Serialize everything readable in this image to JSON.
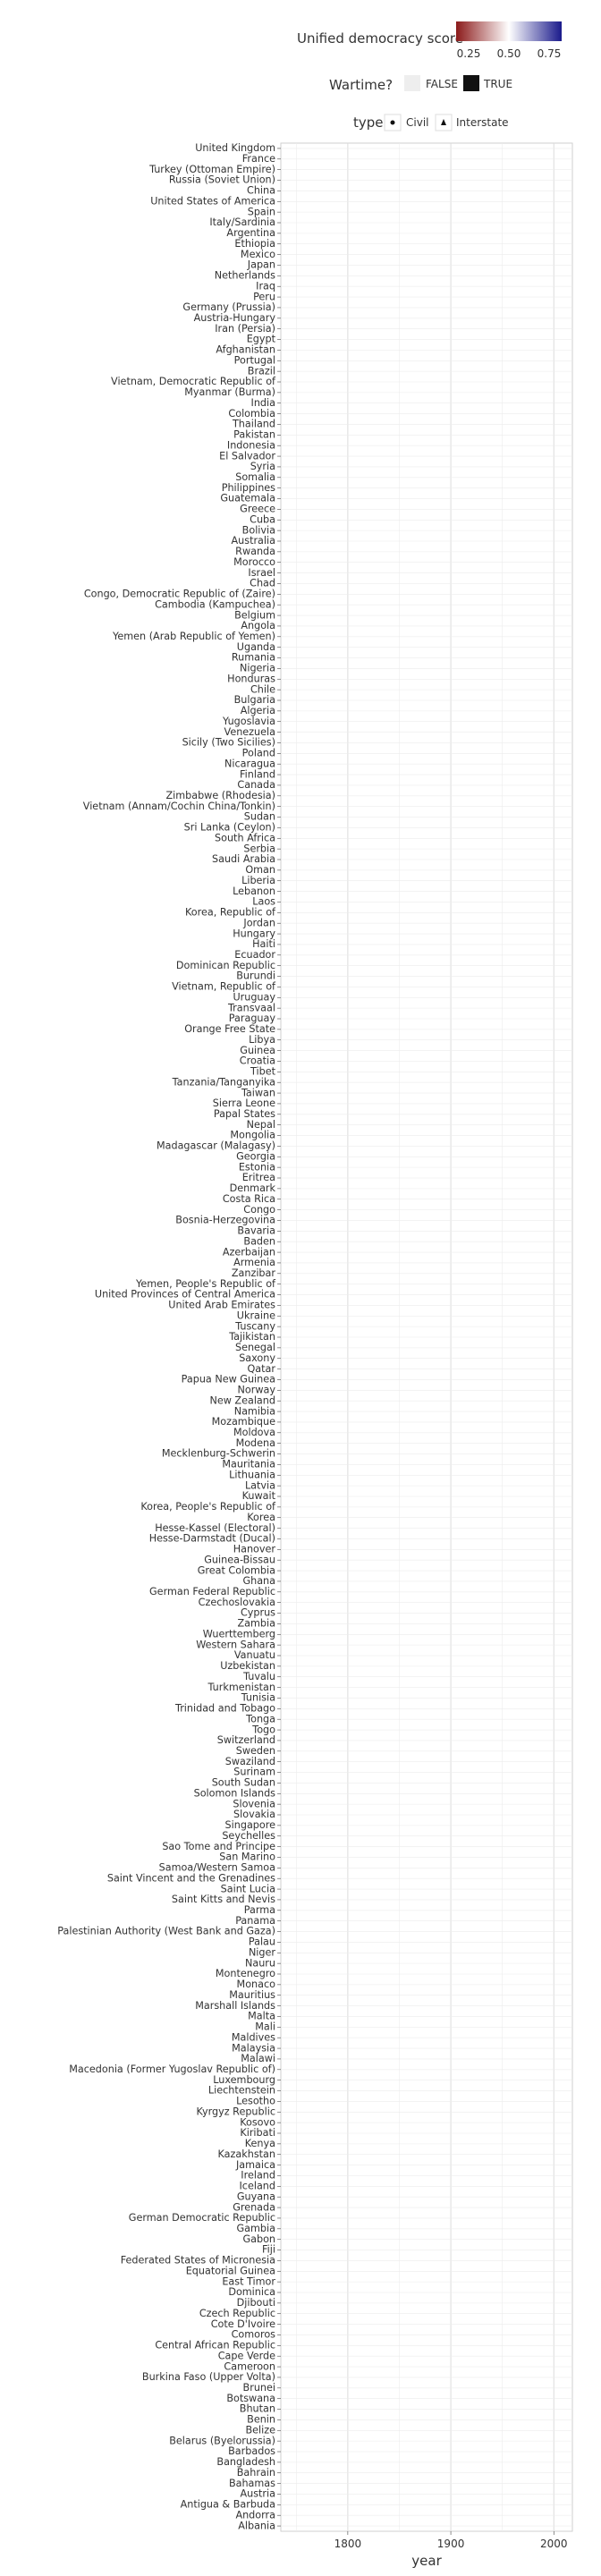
{
  "chart_data": {
    "type": "scatter",
    "xlabel": "year",
    "ylabel": "",
    "xlim": [
      1735,
      2018
    ],
    "x_ticks": [
      1800,
      1900,
      2000
    ],
    "grid": true,
    "legend_placement": "top-right",
    "legend": {
      "color_title": "Unified democracy score",
      "color_ticks": [
        "0.25",
        "0.50",
        "0.75"
      ],
      "color_low": "#8b1a1a",
      "color_mid": "#ffffff",
      "color_high": "#1a1a8b",
      "wartime_title": "Wartime?",
      "wartime_false": "FALSE",
      "wartime_true": "TRUE",
      "type_title": "type",
      "type_civil": "Civil",
      "type_interstate": "Interstate"
    },
    "countries": [
      "United Kingdom",
      "France",
      "Turkey (Ottoman Empire)",
      "Russia (Soviet Union)",
      "China",
      "United States of America",
      "Spain",
      "Italy/Sardinia",
      "Argentina",
      "Ethiopia",
      "Mexico",
      "Japan",
      "Netherlands",
      "Iraq",
      "Peru",
      "Germany (Prussia)",
      "Austria-Hungary",
      "Iran (Persia)",
      "Egypt",
      "Afghanistan",
      "Portugal",
      "Brazil",
      "Vietnam, Democratic Republic of",
      "Myanmar (Burma)",
      "India",
      "Colombia",
      "Thailand",
      "Pakistan",
      "Indonesia",
      "El Salvador",
      "Syria",
      "Somalia",
      "Philippines",
      "Guatemala",
      "Greece",
      "Cuba",
      "Bolivia",
      "Australia",
      "Rwanda",
      "Morocco",
      "Israel",
      "Chad",
      "Congo, Democratic Republic of (Zaire)",
      "Cambodia (Kampuchea)",
      "Belgium",
      "Angola",
      "Yemen (Arab Republic of Yemen)",
      "Uganda",
      "Rumania",
      "Nigeria",
      "Honduras",
      "Chile",
      "Bulgaria",
      "Algeria",
      "Yugoslavia",
      "Venezuela",
      "Sicily (Two Sicilies)",
      "Poland",
      "Nicaragua",
      "Finland",
      "Canada",
      "Zimbabwe (Rhodesia)",
      "Vietnam (Annam/Cochin China/Tonkin)",
      "Sudan",
      "Sri Lanka (Ceylon)",
      "South Africa",
      "Serbia",
      "Saudi Arabia",
      "Oman",
      "Liberia",
      "Lebanon",
      "Laos",
      "Korea, Republic of",
      "Jordan",
      "Hungary",
      "Haiti",
      "Ecuador",
      "Dominican Republic",
      "Burundi",
      "Vietnam, Republic of",
      "Uruguay",
      "Transvaal",
      "Paraguay",
      "Orange Free State",
      "Libya",
      "Guinea",
      "Croatia",
      "Tibet",
      "Tanzania/Tanganyika",
      "Taiwan",
      "Sierra Leone",
      "Papal States",
      "Nepal",
      "Mongolia",
      "Madagascar (Malagasy)",
      "Georgia",
      "Estonia",
      "Eritrea",
      "Denmark",
      "Costa Rica",
      "Congo",
      "Bosnia-Herzegovina",
      "Bavaria",
      "Baden",
      "Azerbaijan",
      "Armenia",
      "Zanzibar",
      "Yemen, People's Republic of",
      "United Provinces of Central America",
      "United Arab Emirates",
      "Ukraine",
      "Tuscany",
      "Tajikistan",
      "Senegal",
      "Saxony",
      "Qatar",
      "Papua New Guinea",
      "Norway",
      "New Zealand",
      "Namibia",
      "Mozambique",
      "Moldova",
      "Modena",
      "Mecklenburg-Schwerin",
      "Mauritania",
      "Lithuania",
      "Latvia",
      "Kuwait",
      "Korea, People's Republic of",
      "Korea",
      "Hesse-Kassel (Electoral)",
      "Hesse-Darmstadt (Ducal)",
      "Hanover",
      "Guinea-Bissau",
      "Great Colombia",
      "Ghana",
      "German Federal Republic",
      "Czechoslovakia",
      "Cyprus",
      "Zambia",
      "Wuerttemberg",
      "Western Sahara",
      "Vanuatu",
      "Uzbekistan",
      "Tuvalu",
      "Turkmenistan",
      "Tunisia",
      "Trinidad and Tobago",
      "Tonga",
      "Togo",
      "Switzerland",
      "Sweden",
      "Swaziland",
      "Surinam",
      "South Sudan",
      "Solomon Islands",
      "Slovenia",
      "Slovakia",
      "Singapore",
      "Seychelles",
      "Sao Tome and Principe",
      "San Marino",
      "Samoa/Western Samoa",
      "Saint Vincent and the Grenadines",
      "Saint Lucia",
      "Saint Kitts and Nevis",
      "Parma",
      "Panama",
      "Palestinian Authority (West Bank and Gaza)",
      "Palau",
      "Niger",
      "Nauru",
      "Montenegro",
      "Monaco",
      "Mauritius",
      "Marshall Islands",
      "Malta",
      "Mali",
      "Maldives",
      "Malaysia",
      "Malawi",
      "Macedonia (Former Yugoslav Republic of)",
      "Luxembourg",
      "Liechtenstein",
      "Lesotho",
      "Kyrgyz Republic",
      "Kosovo",
      "Kiribati",
      "Kenya",
      "Kazakhstan",
      "Jamaica",
      "Ireland",
      "Iceland",
      "Guyana",
      "Grenada",
      "German Democratic Republic",
      "Gambia",
      "Gabon",
      "Fiji",
      "Federated States of Micronesia",
      "Equatorial Guinea",
      "East Timor",
      "Dominica",
      "Djibouti",
      "Czech Republic",
      "Cote D'Ivoire",
      "Comoros",
      "Central African Republic",
      "Cape Verde",
      "Cameroon",
      "Burkina Faso (Upper Volta)",
      "Brunei",
      "Botswana",
      "Bhutan",
      "Benin",
      "Belize",
      "Belarus (Byelorussia)",
      "Barbados",
      "Bangladesh",
      "Bahrain",
      "Bahamas",
      "Austria",
      "Antigua & Barbuda",
      "Andorra",
      "Albania"
    ]
  }
}
